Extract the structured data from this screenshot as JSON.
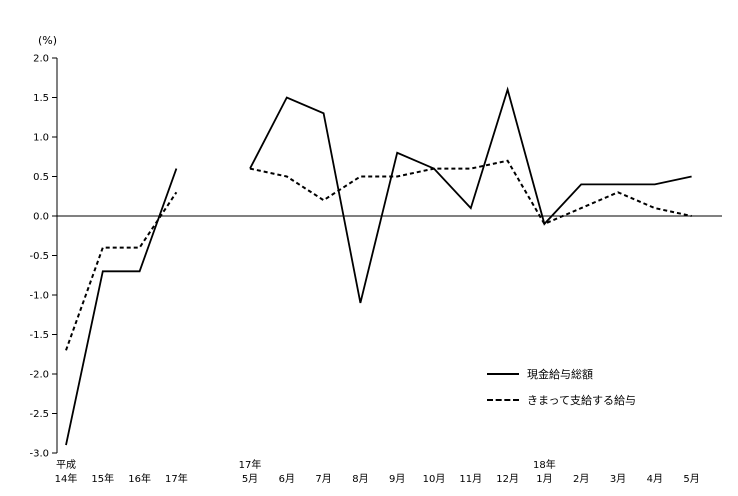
{
  "chart_data": {
    "type": "line",
    "title": "",
    "ylabel": "(%)",
    "ylim": [
      -3.0,
      2.0
    ],
    "ytick_step": 0.5,
    "grid": false,
    "legend_position": "center-right",
    "categories": [
      {
        "slot": 0,
        "top": "平成",
        "bottom": "14年"
      },
      {
        "slot": 1,
        "top": "",
        "bottom": "15年"
      },
      {
        "slot": 2,
        "top": "",
        "bottom": "16年"
      },
      {
        "slot": 3,
        "top": "",
        "bottom": "17年"
      },
      {
        "slot": 5,
        "top": "17年",
        "bottom": "5月"
      },
      {
        "slot": 6,
        "top": "",
        "bottom": "6月"
      },
      {
        "slot": 7,
        "top": "",
        "bottom": "7月"
      },
      {
        "slot": 8,
        "top": "",
        "bottom": "8月"
      },
      {
        "slot": 9,
        "top": "",
        "bottom": "9月"
      },
      {
        "slot": 10,
        "top": "",
        "bottom": "10月"
      },
      {
        "slot": 11,
        "top": "",
        "bottom": "11月"
      },
      {
        "slot": 12,
        "top": "",
        "bottom": "12月"
      },
      {
        "slot": 13,
        "top": "18年",
        "bottom": "1月"
      },
      {
        "slot": 14,
        "top": "",
        "bottom": "2月"
      },
      {
        "slot": 15,
        "top": "",
        "bottom": "3月"
      },
      {
        "slot": 16,
        "top": "",
        "bottom": "4月"
      },
      {
        "slot": 17,
        "top": "",
        "bottom": "5月"
      }
    ],
    "series": [
      {
        "name": "現金給与総額",
        "style": "solid",
        "color": "#000000",
        "segments": [
          {
            "start_slot": 0,
            "values": [
              -2.9,
              -0.7,
              -0.7,
              0.6
            ]
          },
          {
            "start_slot": 5,
            "values": [
              0.6,
              1.5,
              1.3,
              -1.1,
              0.8,
              0.6,
              0.1,
              1.6,
              -0.1,
              0.4,
              0.4,
              0.4,
              0.5
            ]
          }
        ]
      },
      {
        "name": "きまって支給する給与",
        "style": "dashed",
        "color": "#000000",
        "segments": [
          {
            "start_slot": 0,
            "values": [
              -1.7,
              -0.4,
              -0.4,
              0.3
            ]
          },
          {
            "start_slot": 5,
            "values": [
              0.6,
              0.5,
              0.2,
              0.5,
              0.5,
              0.6,
              0.6,
              0.7,
              -0.1,
              0.1,
              0.3,
              0.1,
              0.0
            ]
          }
        ]
      }
    ]
  }
}
